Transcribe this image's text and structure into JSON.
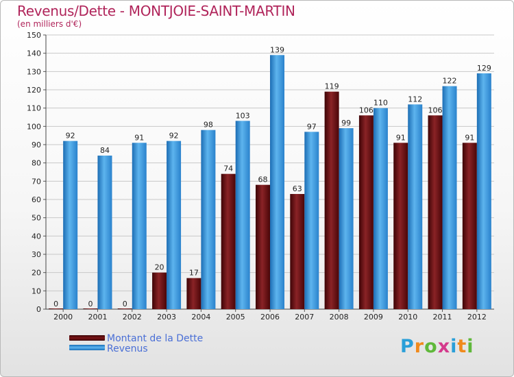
{
  "header": {
    "title": "Revenus/Dette - MONTJOIE-SAINT-MARTIN",
    "subtitle": "(en milliers d'€)"
  },
  "legend": {
    "items": [
      {
        "label": "Montant de la Dette",
        "color": "#7a1416"
      },
      {
        "label": "Revenus",
        "color": "#3a96e0"
      }
    ]
  },
  "logo": {
    "text": "Proxiti",
    "letters": [
      "P",
      "r",
      "o",
      "x",
      "i",
      "t",
      "i"
    ],
    "colors": [
      "#2a9fd8",
      "#f08a1c",
      "#5fb83a",
      "#d43a8c",
      "#2a9fd8",
      "#f08a1c",
      "#5fb83a"
    ]
  },
  "chart_data": {
    "type": "bar",
    "title": "Revenus/Dette - MONTJOIE-SAINT-MARTIN",
    "subtitle": "(en milliers d'€)",
    "xlabel": "",
    "ylabel": "",
    "categories": [
      "2000",
      "2001",
      "2002",
      "2003",
      "2004",
      "2005",
      "2006",
      "2007",
      "2008",
      "2009",
      "2010",
      "2011",
      "2012"
    ],
    "series": [
      {
        "name": "Montant de la Dette",
        "values": [
          0,
          0,
          0,
          20,
          17,
          74,
          68,
          63,
          119,
          106,
          91,
          106,
          91
        ],
        "color": "#7a1416"
      },
      {
        "name": "Revenus",
        "values": [
          92,
          84,
          91,
          92,
          98,
          103,
          139,
          97,
          99,
          110,
          112,
          122,
          129
        ],
        "color": "#3a96e0"
      }
    ],
    "ylim": [
      0,
      150
    ],
    "yticks": [
      0,
      10,
      20,
      30,
      40,
      50,
      60,
      70,
      80,
      90,
      100,
      110,
      120,
      130,
      140,
      150
    ],
    "grid": true,
    "legend_position": "bottom-left"
  }
}
